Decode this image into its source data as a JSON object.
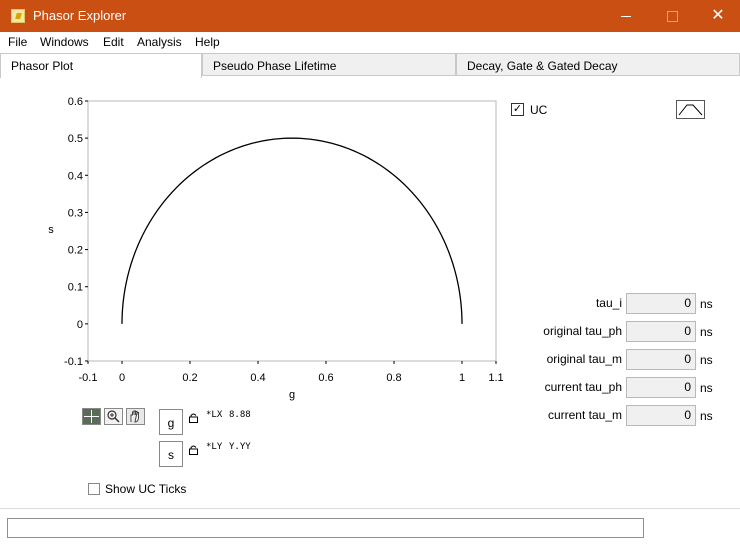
{
  "window": {
    "title": "Phasor Explorer",
    "minimize": "—",
    "maximize": "☐",
    "close": "✕"
  },
  "menu": [
    "File",
    "Windows",
    "Edit",
    "Analysis",
    "Help"
  ],
  "tabs": [
    "Phasor Plot",
    "Pseudo Phase Lifetime",
    "Decay, Gate & Gated Decay"
  ],
  "uc": {
    "label": "UC",
    "checked": true,
    "check_mark": "✓"
  },
  "fields": [
    {
      "label": "tau_i",
      "value": "0",
      "unit": "ns"
    },
    {
      "label": "original  tau_ph",
      "value": "0",
      "unit": "ns"
    },
    {
      "label": "original tau_m",
      "value": "0",
      "unit": "ns"
    },
    {
      "label": "current tau_ph",
      "value": "0",
      "unit": "ns"
    },
    {
      "label": "current tau_m",
      "value": "0",
      "unit": "ns"
    }
  ],
  "axis_controls": {
    "x": {
      "name": "g",
      "format_label": "*LX",
      "format_value": "8.88"
    },
    "y": {
      "name": "s",
      "format_label": "*LY",
      "format_value": "Y.YY"
    }
  },
  "show_uc_ticks": {
    "label": "Show UC Ticks",
    "checked": false
  },
  "chart_data": {
    "type": "line",
    "title": "",
    "xlabel": "g",
    "ylabel": "s",
    "xlim": [
      -0.1,
      1.1
    ],
    "ylim": [
      -0.1,
      0.6
    ],
    "x_ticks": [
      "-0.1",
      "0",
      "0.2",
      "0.4",
      "0.6",
      "0.8",
      "1",
      "1.1"
    ],
    "y_ticks": [
      "-0.1",
      "0",
      "0.1",
      "0.2",
      "0.3",
      "0.4",
      "0.5",
      "0.6"
    ],
    "x_tick_values": [
      -0.1,
      0,
      0.2,
      0.4,
      0.6,
      0.8,
      1,
      1.1
    ],
    "y_tick_values": [
      -0.1,
      0,
      0.1,
      0.2,
      0.3,
      0.4,
      0.5,
      0.6
    ],
    "series": [
      {
        "x": [
          0,
          0.0245,
          0.0955,
          0.2061,
          0.3455,
          0.5,
          0.6545,
          0.7939,
          0.9045,
          0.9755,
          1
        ],
        "y": [
          0,
          0.1545,
          0.2939,
          0.4045,
          0.4755,
          0.5,
          0.4755,
          0.4045,
          0.2939,
          0.1545,
          0
        ]
      }
    ],
    "grid": false
  }
}
